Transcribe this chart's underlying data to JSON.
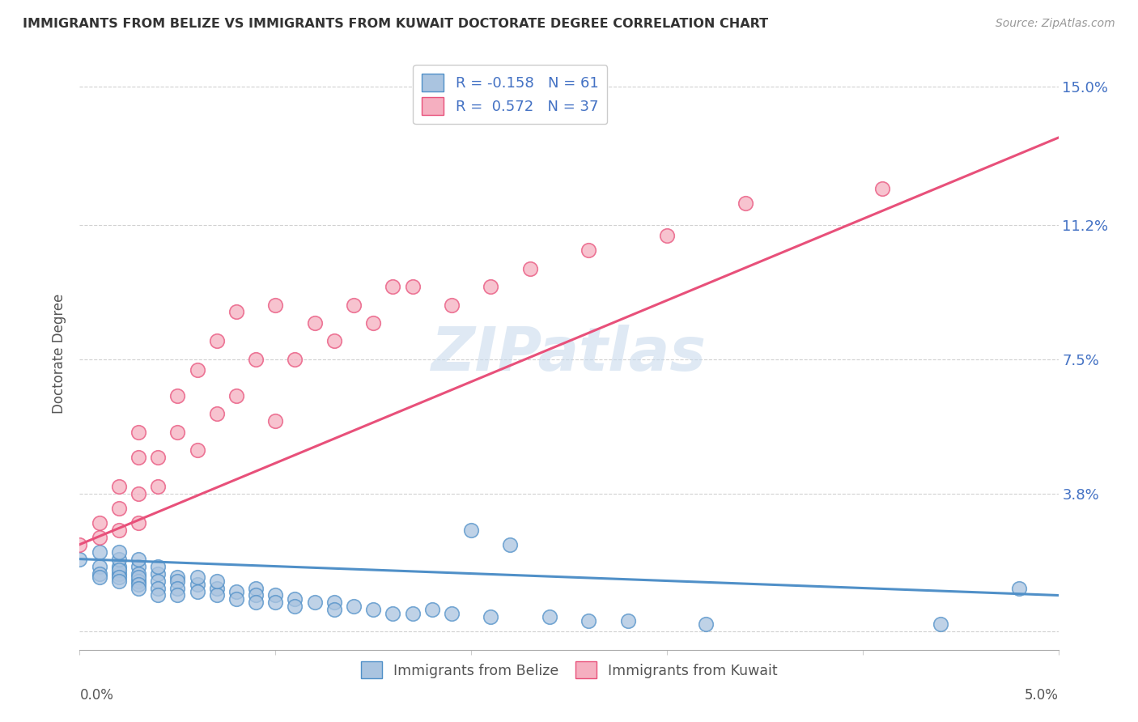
{
  "title": "IMMIGRANTS FROM BELIZE VS IMMIGRANTS FROM KUWAIT DOCTORATE DEGREE CORRELATION CHART",
  "source": "Source: ZipAtlas.com",
  "ylabel": "Doctorate Degree",
  "ytick_labels": [
    "",
    "3.8%",
    "7.5%",
    "11.2%",
    "15.0%"
  ],
  "ytick_values": [
    0.0,
    0.038,
    0.075,
    0.112,
    0.15
  ],
  "xlim": [
    0.0,
    0.05
  ],
  "ylim": [
    -0.005,
    0.158
  ],
  "legend_belize_R": "-0.158",
  "legend_belize_N": "61",
  "legend_kuwait_R": "0.572",
  "legend_kuwait_N": "37",
  "color_belize": "#aac4e0",
  "color_kuwait": "#f5afc0",
  "line_color_belize": "#5090c8",
  "line_color_kuwait": "#e8507a",
  "watermark": "ZIPatlas",
  "background_color": "#ffffff",
  "belize_line_y0": 0.02,
  "belize_line_y1": 0.01,
  "kuwait_line_y0": 0.024,
  "kuwait_line_y1": 0.136,
  "belize_x": [
    0.0,
    0.001,
    0.001,
    0.001,
    0.001,
    0.002,
    0.002,
    0.002,
    0.002,
    0.002,
    0.002,
    0.002,
    0.003,
    0.003,
    0.003,
    0.003,
    0.003,
    0.003,
    0.003,
    0.004,
    0.004,
    0.004,
    0.004,
    0.004,
    0.005,
    0.005,
    0.005,
    0.005,
    0.006,
    0.006,
    0.006,
    0.007,
    0.007,
    0.007,
    0.008,
    0.008,
    0.009,
    0.009,
    0.009,
    0.01,
    0.01,
    0.011,
    0.011,
    0.012,
    0.013,
    0.013,
    0.014,
    0.015,
    0.016,
    0.017,
    0.018,
    0.019,
    0.02,
    0.021,
    0.022,
    0.024,
    0.026,
    0.028,
    0.032,
    0.044,
    0.048
  ],
  "belize_y": [
    0.02,
    0.018,
    0.016,
    0.022,
    0.015,
    0.016,
    0.018,
    0.02,
    0.017,
    0.015,
    0.022,
    0.014,
    0.018,
    0.016,
    0.02,
    0.014,
    0.015,
    0.013,
    0.012,
    0.016,
    0.018,
    0.014,
    0.012,
    0.01,
    0.015,
    0.014,
    0.012,
    0.01,
    0.013,
    0.015,
    0.011,
    0.012,
    0.01,
    0.014,
    0.011,
    0.009,
    0.012,
    0.01,
    0.008,
    0.01,
    0.008,
    0.009,
    0.007,
    0.008,
    0.008,
    0.006,
    0.007,
    0.006,
    0.005,
    0.005,
    0.006,
    0.005,
    0.028,
    0.004,
    0.024,
    0.004,
    0.003,
    0.003,
    0.002,
    0.002,
    0.012
  ],
  "kuwait_x": [
    0.0,
    0.001,
    0.001,
    0.002,
    0.002,
    0.002,
    0.003,
    0.003,
    0.003,
    0.003,
    0.004,
    0.004,
    0.005,
    0.005,
    0.006,
    0.006,
    0.007,
    0.007,
    0.008,
    0.008,
    0.009,
    0.01,
    0.01,
    0.011,
    0.012,
    0.013,
    0.014,
    0.015,
    0.016,
    0.017,
    0.019,
    0.021,
    0.023,
    0.026,
    0.03,
    0.034,
    0.041
  ],
  "kuwait_y": [
    0.024,
    0.026,
    0.03,
    0.028,
    0.034,
    0.04,
    0.03,
    0.038,
    0.048,
    0.055,
    0.04,
    0.048,
    0.055,
    0.065,
    0.05,
    0.072,
    0.06,
    0.08,
    0.065,
    0.088,
    0.075,
    0.058,
    0.09,
    0.075,
    0.085,
    0.08,
    0.09,
    0.085,
    0.095,
    0.095,
    0.09,
    0.095,
    0.1,
    0.105,
    0.109,
    0.118,
    0.122
  ]
}
